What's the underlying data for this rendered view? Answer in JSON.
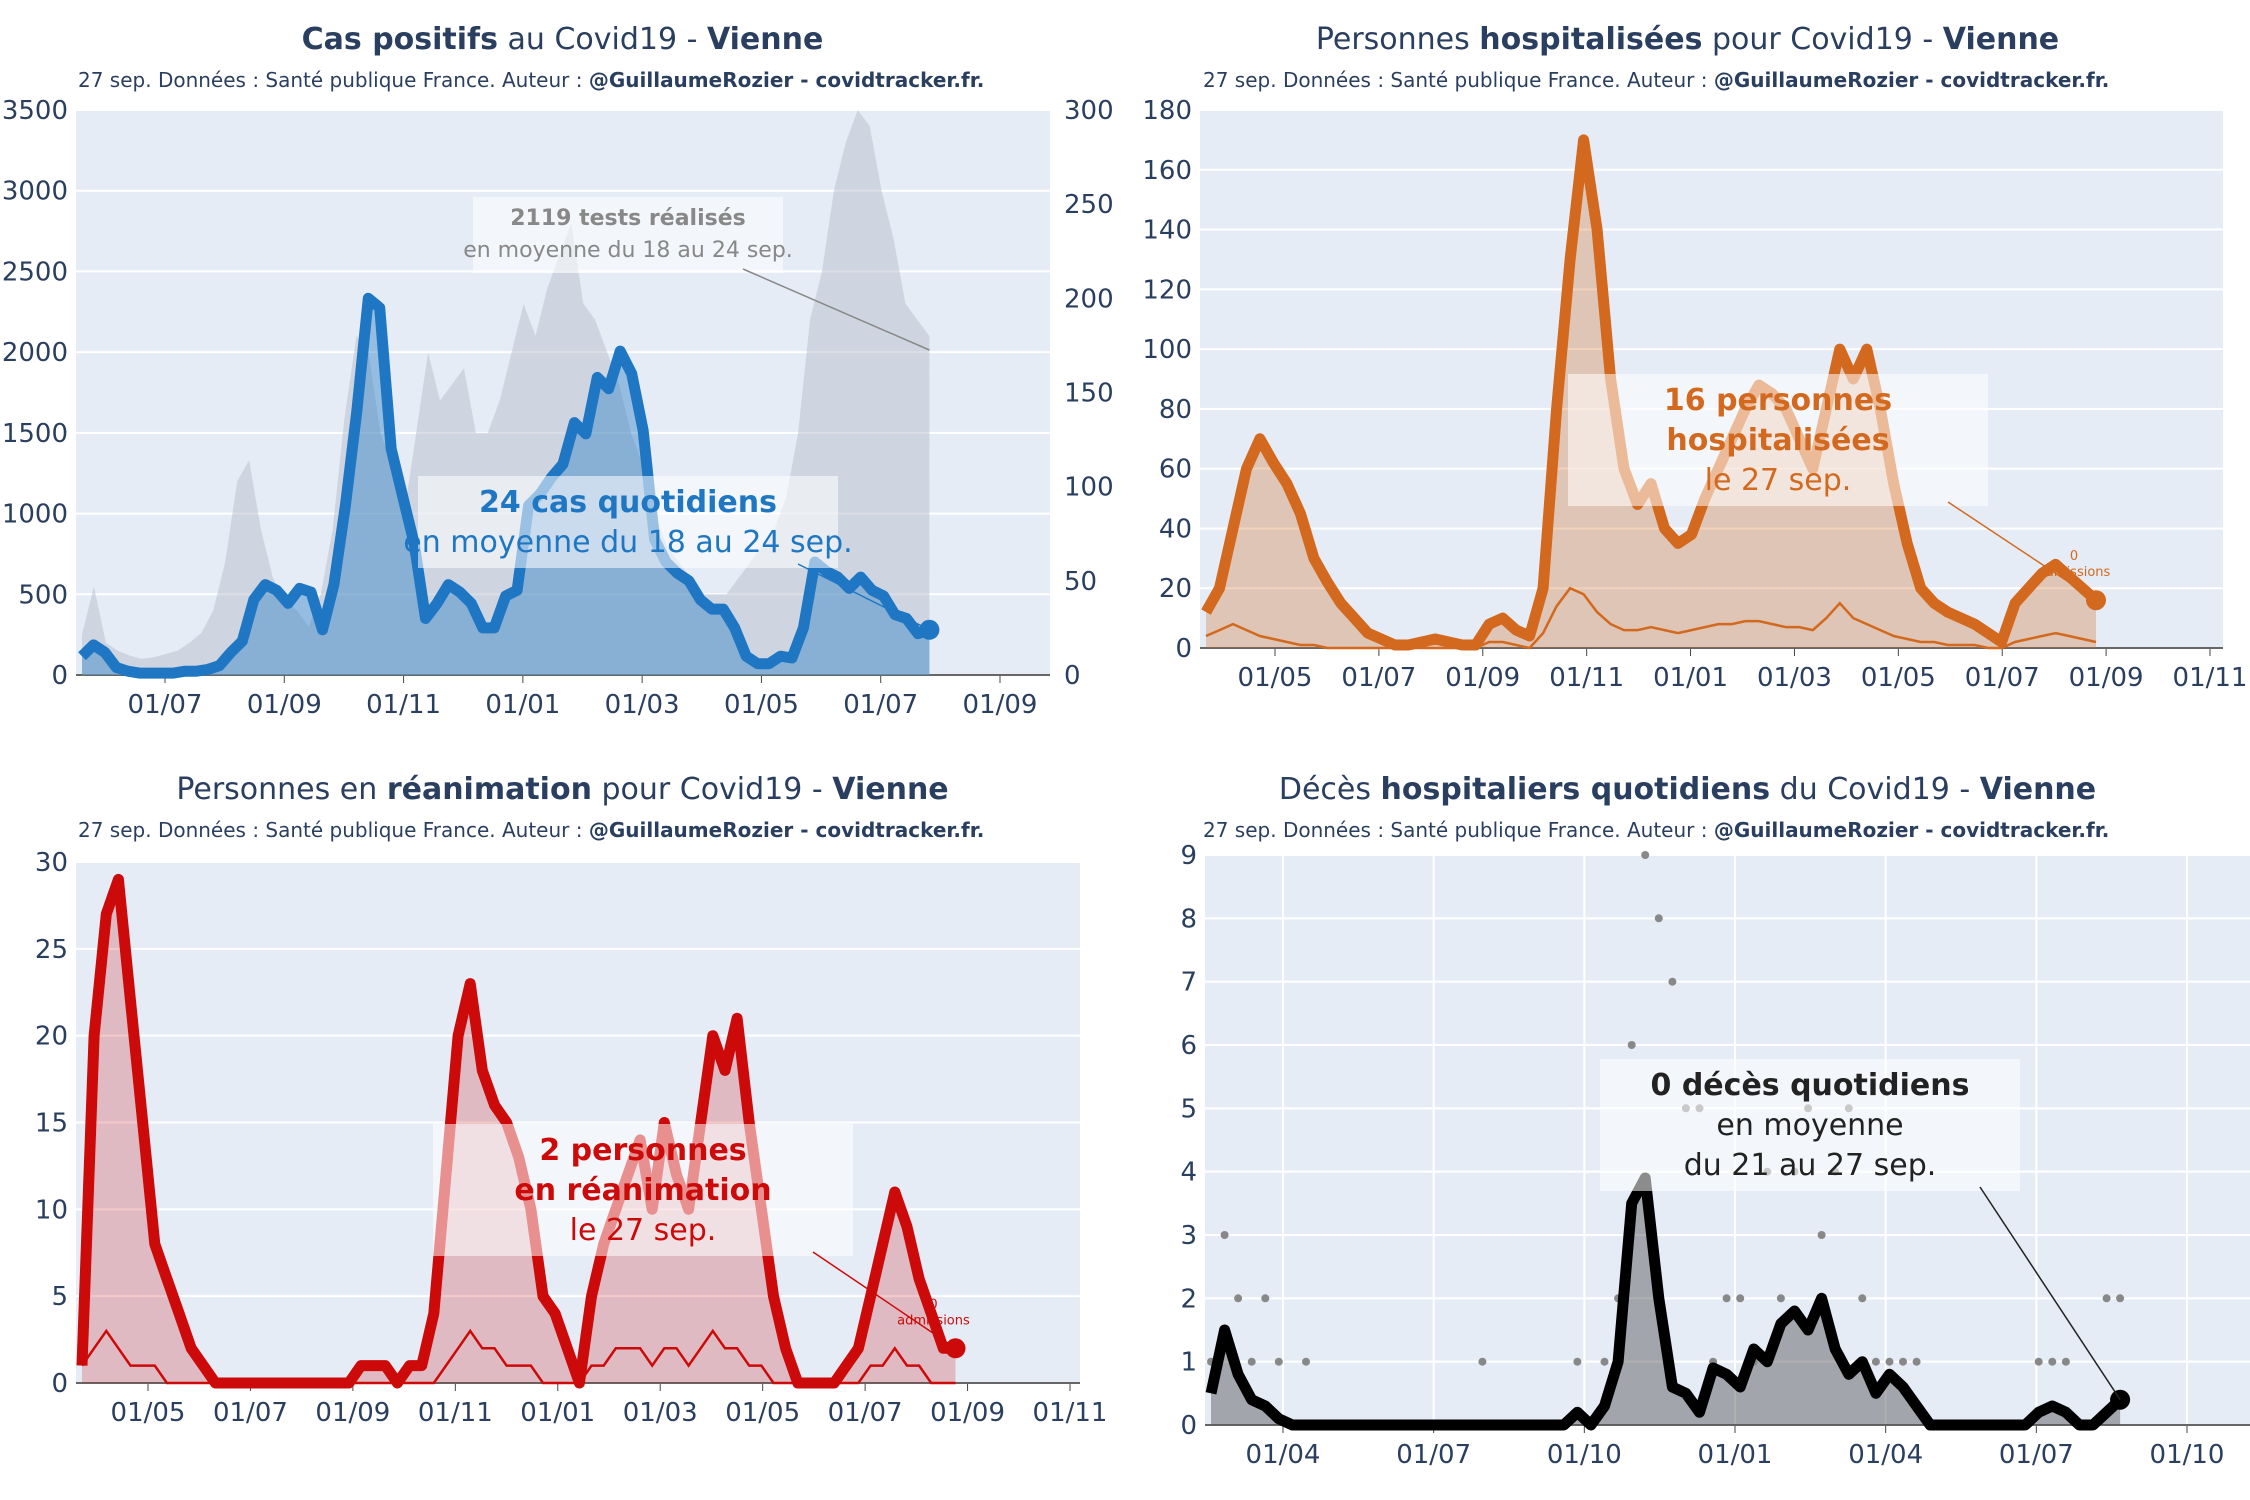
{
  "subtitle_source": "27 sep. Données : Santé publique France. Auteur : ",
  "subtitle_author": "@GuillaumeRozier - covidtracker.fr.",
  "chart_data": [
    {
      "id": "cases",
      "type": "area",
      "title_parts": [
        "Cas positifs",
        " au Covid19 - ",
        "Vienne"
      ],
      "title_bold": [
        true,
        false,
        true
      ],
      "color": "#1f77c4",
      "fill": "rgba(31,119,196,0.40)",
      "xticks": [
        "01/07",
        "01/09",
        "01/11",
        "01/01",
        "01/03",
        "01/05",
        "01/07",
        "01/09"
      ],
      "ylim": [
        0,
        3500
      ],
      "yticks": [
        "0",
        "500",
        "1000",
        "1500",
        "2000",
        "2500",
        "3000",
        "3500"
      ],
      "y2lim": [
        0,
        300
      ],
      "y2ticks": [
        "0",
        "50",
        "100",
        "150",
        "200",
        "250",
        "300"
      ],
      "series": [
        {
          "name": "cas quotidiens (moyenne 7j)",
          "axis": "y2",
          "values": [
            10,
            16,
            12,
            4,
            2,
            1,
            1,
            1,
            1,
            2,
            2,
            3,
            5,
            12,
            18,
            40,
            48,
            45,
            38,
            46,
            44,
            24,
            48,
            90,
            140,
            200,
            195,
            120,
            95,
            70,
            30,
            38,
            48,
            44,
            38,
            25,
            25,
            42,
            45,
            90,
            96,
            105,
            112,
            134,
            128,
            158,
            152,
            172,
            160,
            130,
            72,
            60,
            54,
            50,
            40,
            35,
            35,
            25,
            10,
            6,
            6,
            10,
            9,
            25,
            60,
            55,
            52,
            46,
            52,
            45,
            42,
            32,
            30,
            22,
            24
          ]
        },
        {
          "name": "tests réalisés",
          "axis": "y",
          "values": [
            250,
            550,
            200,
            150,
            120,
            100,
            110,
            130,
            150,
            200,
            260,
            400,
            700,
            1200,
            1330,
            900,
            600,
            450,
            400,
            300,
            500,
            900,
            1600,
            2100,
            2000,
            1500,
            1300,
            1000,
            1500,
            2000,
            1700,
            1800,
            1900,
            1500,
            1500,
            1700,
            2000,
            2300,
            2100,
            2400,
            2600,
            2800,
            2300,
            2200,
            2000,
            1800,
            1500,
            1300,
            1000,
            800,
            700,
            600,
            500,
            500,
            500,
            600,
            700,
            800,
            900,
            1100,
            1500,
            2200,
            2500,
            3000,
            3300,
            3500,
            3400,
            3000,
            2700,
            2300,
            2200,
            2100
          ]
        }
      ],
      "annotations": [
        {
          "lines": [
            "2119 tests réalisés",
            "en moyenne du 18 au 24 sep."
          ],
          "bold_first": true,
          "color": "#888888"
        },
        {
          "lines": [
            "24 cas quotidiens",
            "en moyenne du 18 au 24 sep."
          ],
          "bold_first": true,
          "color": "#1f77c4"
        }
      ]
    },
    {
      "id": "hosp",
      "type": "area",
      "title_parts": [
        "Personnes ",
        "hospitalisées",
        " pour Covid19 - ",
        "Vienne"
      ],
      "title_bold": [
        false,
        true,
        false,
        true
      ],
      "color": "#d2691e",
      "fill": "rgba(210,105,30,0.30)",
      "xticks": [
        "01/05",
        "01/07",
        "01/09",
        "01/11",
        "01/01",
        "01/03",
        "01/05",
        "01/07",
        "01/09",
        "01/11"
      ],
      "ylim": [
        0,
        180
      ],
      "yticks": [
        "0",
        "20",
        "40",
        "60",
        "80",
        "100",
        "120",
        "140",
        "160",
        "180"
      ],
      "series": [
        {
          "name": "hospitalisations",
          "values": [
            12,
            20,
            40,
            60,
            70,
            62,
            55,
            45,
            30,
            22,
            15,
            10,
            5,
            3,
            1,
            1,
            2,
            3,
            2,
            1,
            1,
            8,
            10,
            6,
            4,
            20,
            80,
            130,
            170,
            140,
            90,
            60,
            48,
            55,
            40,
            35,
            38,
            50,
            60,
            70,
            80,
            88,
            85,
            80,
            70,
            60,
            80,
            100,
            90,
            100,
            80,
            55,
            35,
            20,
            15,
            12,
            10,
            8,
            5,
            2,
            15,
            20,
            25,
            28,
            24,
            20,
            16
          ]
        },
        {
          "name": "admissions",
          "values": [
            4,
            6,
            8,
            6,
            4,
            3,
            2,
            1,
            1,
            0,
            0,
            0,
            0,
            0,
            0,
            0,
            0,
            0,
            0,
            0,
            0,
            2,
            2,
            1,
            0,
            5,
            14,
            20,
            18,
            12,
            8,
            6,
            6,
            7,
            6,
            5,
            6,
            7,
            8,
            8,
            9,
            9,
            8,
            7,
            7,
            6,
            10,
            15,
            10,
            8,
            6,
            4,
            3,
            2,
            2,
            1,
            1,
            1,
            0,
            0,
            2,
            3,
            4,
            5,
            4,
            3,
            2
          ]
        }
      ],
      "annotations": [
        {
          "lines": [
            "16 personnes",
            "hospitalisées",
            "le 27 sep."
          ],
          "bold_count": 2,
          "color": "#d2691e"
        },
        {
          "lines": [
            "0",
            "admissions"
          ],
          "small": true,
          "color": "#d2691e"
        }
      ]
    },
    {
      "id": "rea",
      "type": "area",
      "title_parts": [
        "Personnes en ",
        "réanimation",
        " pour Covid19 - ",
        "Vienne"
      ],
      "title_bold": [
        false,
        true,
        false,
        true
      ],
      "color": "#cc0a0a",
      "fill": "rgba(204,10,10,0.22)",
      "xticks": [
        "01/05",
        "01/07",
        "01/09",
        "01/11",
        "01/01",
        "01/03",
        "01/05",
        "01/07",
        "01/09",
        "01/11"
      ],
      "ylim": [
        0,
        30
      ],
      "yticks": [
        "0",
        "5",
        "10",
        "15",
        "20",
        "25",
        "30"
      ],
      "series": [
        {
          "name": "réanimation",
          "values": [
            1,
            20,
            27,
            29,
            22,
            15,
            8,
            6,
            4,
            2,
            1,
            0,
            0,
            0,
            0,
            0,
            0,
            0,
            0,
            0,
            0,
            0,
            0,
            1,
            1,
            1,
            0,
            1,
            1,
            4,
            12,
            20,
            23,
            18,
            16,
            15,
            13,
            10,
            5,
            4,
            2,
            0,
            5,
            8,
            10,
            12,
            14,
            10,
            15,
            12,
            10,
            15,
            20,
            18,
            21,
            15,
            10,
            5,
            2,
            0,
            0,
            0,
            0,
            1,
            2,
            5,
            8,
            11,
            9,
            6,
            4,
            2,
            2
          ]
        },
        {
          "name": "admissions",
          "values": [
            1,
            2,
            3,
            2,
            1,
            1,
            1,
            0,
            0,
            0,
            0,
            0,
            0,
            0,
            0,
            0,
            0,
            0,
            0,
            0,
            0,
            0,
            0,
            0,
            0,
            0,
            0,
            0,
            0,
            0,
            1,
            2,
            3,
            2,
            2,
            1,
            1,
            1,
            0,
            0,
            0,
            0,
            1,
            1,
            2,
            2,
            2,
            1,
            2,
            2,
            1,
            2,
            3,
            2,
            2,
            1,
            1,
            0,
            0,
            0,
            0,
            0,
            0,
            0,
            0,
            1,
            1,
            2,
            1,
            1,
            0,
            0,
            0
          ]
        }
      ],
      "annotations": [
        {
          "lines": [
            "2 personnes",
            "en réanimation",
            "le 27 sep."
          ],
          "bold_count": 2,
          "color": "#cc0a0a"
        },
        {
          "lines": [
            "0",
            "admissions"
          ],
          "small": true,
          "color": "#cc0a0a"
        }
      ]
    },
    {
      "id": "deces",
      "type": "area",
      "title_parts": [
        "Décès ",
        "hospitaliers quotidiens",
        " du Covid19 - ",
        "Vienne"
      ],
      "title_bold": [
        false,
        true,
        false,
        true
      ],
      "color": "#000000",
      "fill": "rgba(80,80,80,0.45)",
      "xticks": [
        "01/04",
        "01/07",
        "01/10",
        "01/01",
        "01/04",
        "01/07",
        "01/10"
      ],
      "ylim": [
        0,
        9
      ],
      "yticks": [
        "0",
        "1",
        "2",
        "3",
        "4",
        "5",
        "6",
        "7",
        "8",
        "9"
      ],
      "series": [
        {
          "name": "décès (moyenne 7j)",
          "values": [
            0.5,
            1.5,
            0.8,
            0.4,
            0.3,
            0.1,
            0,
            0,
            0,
            0,
            0,
            0,
            0,
            0,
            0,
            0,
            0,
            0,
            0,
            0,
            0,
            0,
            0,
            0,
            0,
            0,
            0,
            0.2,
            0,
            0.3,
            1,
            3.5,
            3.9,
            2,
            0.6,
            0.5,
            0.2,
            0.9,
            0.8,
            0.6,
            1.2,
            1,
            1.6,
            1.8,
            1.5,
            2,
            1.2,
            0.8,
            1,
            0.5,
            0.8,
            0.6,
            0.3,
            0,
            0,
            0,
            0,
            0,
            0,
            0,
            0,
            0.2,
            0.3,
            0.2,
            0,
            0,
            0.2,
            0.4
          ]
        },
        {
          "name": "décès quotidiens",
          "values": [
            1,
            3,
            2,
            1,
            2,
            1,
            0,
            1,
            0,
            0,
            0,
            0,
            0,
            0,
            0,
            0,
            0,
            0,
            0,
            0,
            1,
            0,
            0,
            0,
            0,
            0,
            0,
            1,
            0,
            1,
            2,
            6,
            9,
            8,
            7,
            5,
            5,
            1,
            2,
            2,
            1,
            4,
            2,
            4,
            5,
            3,
            4,
            5,
            2,
            1,
            1,
            1,
            1,
            0,
            0,
            0,
            0,
            0,
            0,
            0,
            0,
            1,
            1,
            1,
            0,
            0,
            2,
            2
          ]
        }
      ],
      "annotations": [
        {
          "lines": [
            "0 décès quotidiens",
            "en moyenne",
            "du 21 au 27 sep."
          ],
          "bold_count": 1,
          "color": "#222222"
        }
      ]
    }
  ]
}
